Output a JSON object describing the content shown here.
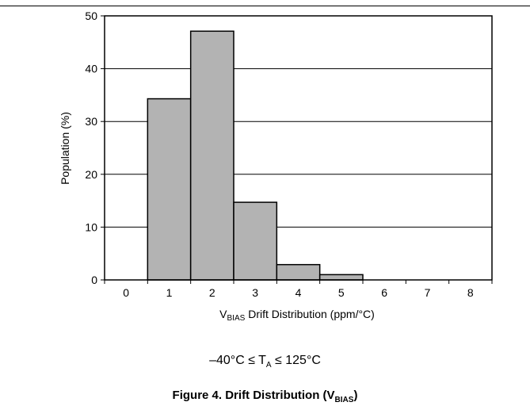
{
  "chart_data": {
    "type": "bar",
    "categories": [
      "0",
      "1",
      "2",
      "3",
      "4",
      "5",
      "6",
      "7",
      "8"
    ],
    "values": [
      0,
      34.3,
      47.1,
      14.7,
      2.9,
      1.0,
      0,
      0,
      0
    ],
    "ylabel": "Population (%)",
    "xlabel_main": "V",
    "xlabel_sub": "BIAS",
    "xlabel_rest": " Drift Distribution (ppm/°C)",
    "ylim": [
      0,
      50
    ],
    "yticks": [
      0,
      10,
      20,
      30,
      40,
      50
    ],
    "grid": true,
    "bar_color": "#b3b3b3"
  },
  "condition": {
    "prefix": "–40°C ≤ T",
    "sub": "A",
    "suffix": " ≤ 125°C"
  },
  "caption": {
    "prefix": "Figure 4. Drift Distribution (V",
    "sub": "BIAS",
    "suffix": ")"
  }
}
